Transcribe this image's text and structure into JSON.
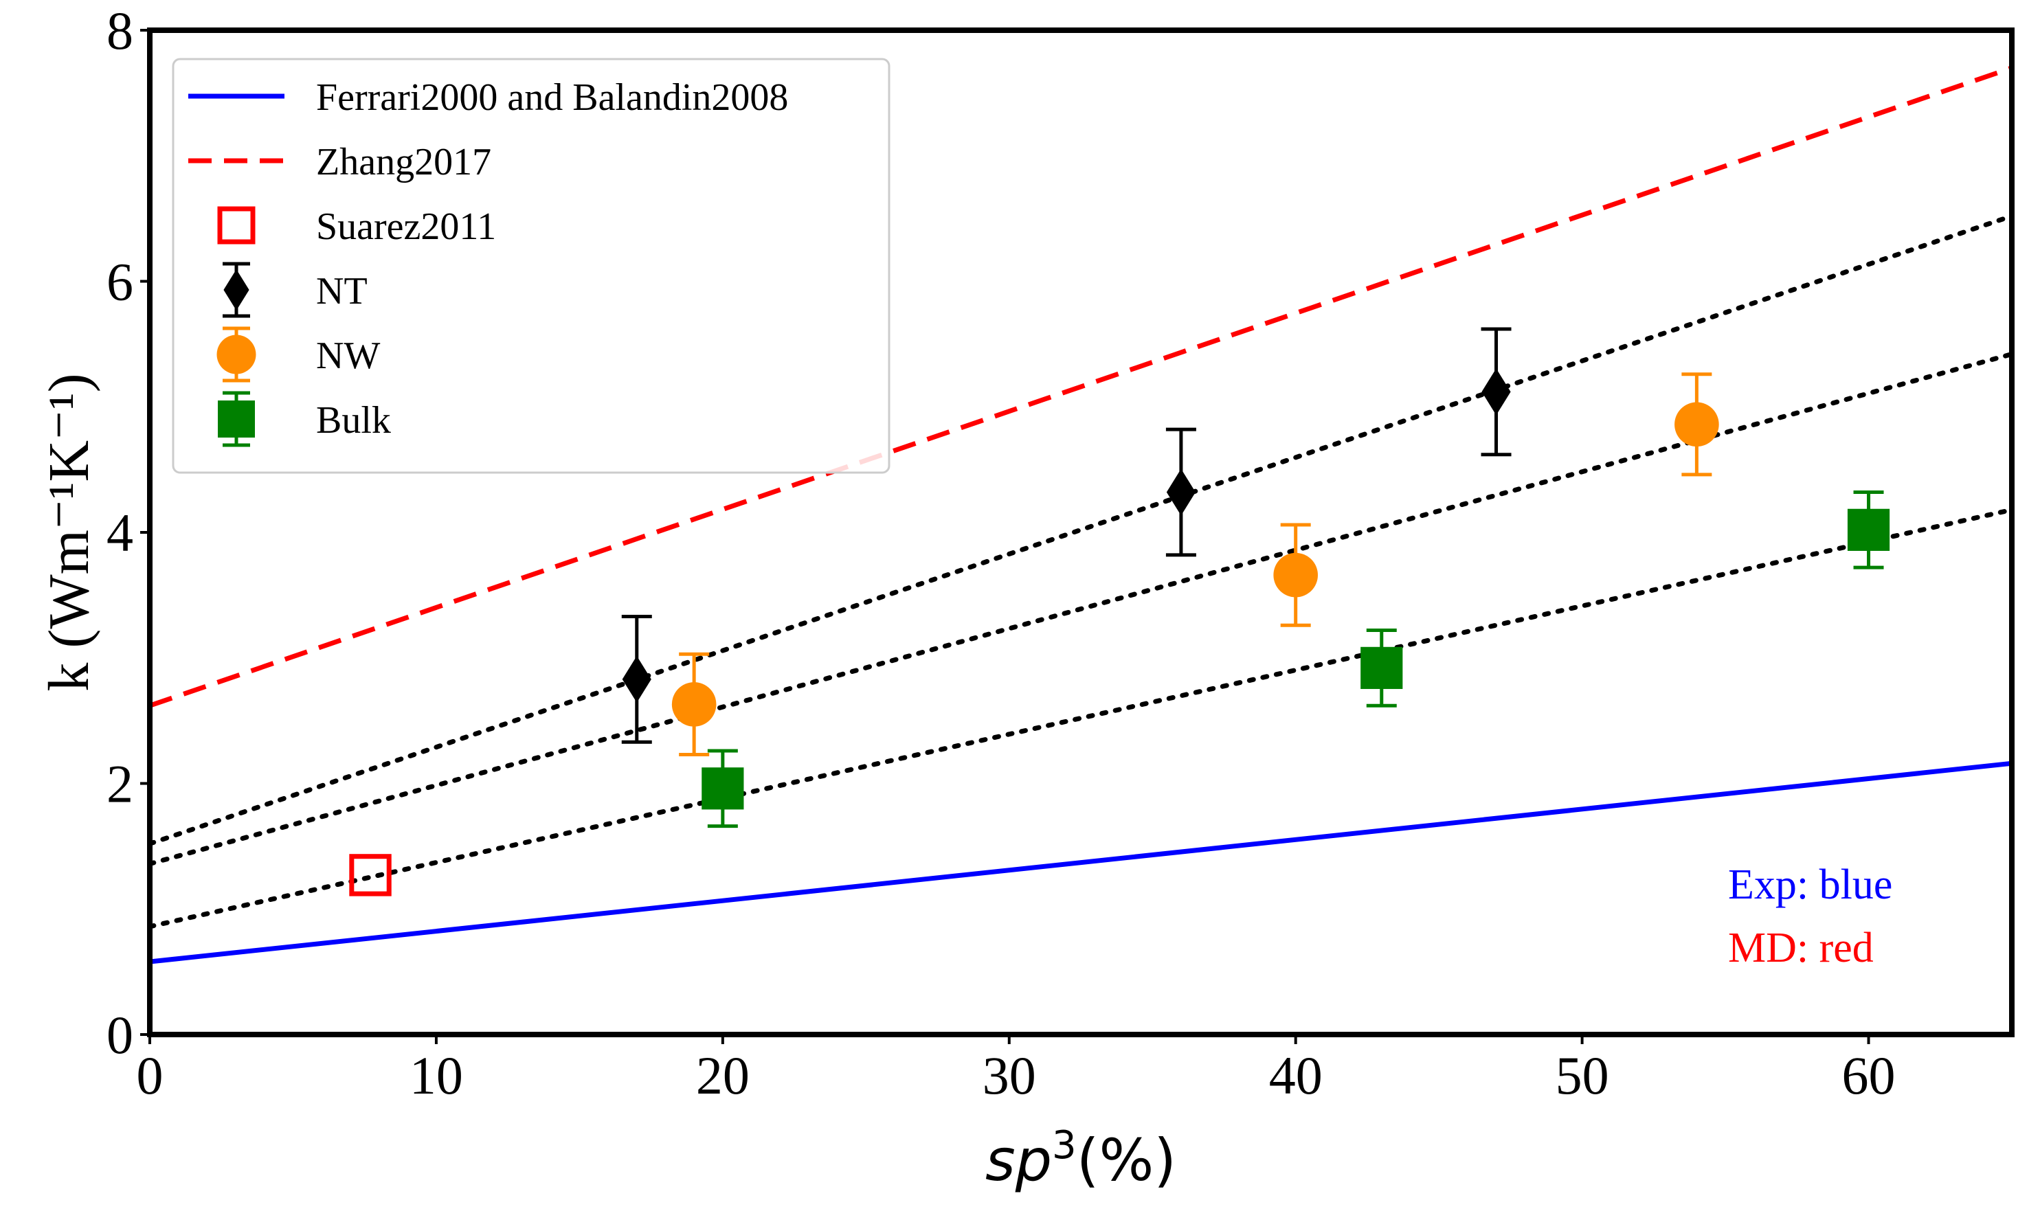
{
  "chart_data": {
    "type": "scatter",
    "title": "",
    "xlabel": {
      "base": "sp",
      "sup": "3",
      "rest": "(%)"
    },
    "ylabel": "k (Wm⁻¹K⁻¹)",
    "xlim": [
      0,
      65
    ],
    "ylim": [
      0,
      8
    ],
    "xticks": [
      0,
      10,
      20,
      30,
      40,
      50,
      60
    ],
    "yticks": [
      0,
      2,
      4,
      6,
      8
    ],
    "grid": false,
    "legend_position": "top-left",
    "lines": [
      {
        "name": "Ferrari2000 and Balandin2008",
        "style": "solid",
        "color": "#0000ff",
        "x": [
          0,
          65
        ],
        "y": [
          0.58,
          2.16
        ],
        "in_legend": true
      },
      {
        "name": "Zhang2017",
        "style": "dashed",
        "color": "#ff0000",
        "x": [
          0,
          65
        ],
        "y": [
          2.62,
          7.7
        ],
        "in_legend": true
      },
      {
        "name": "NT fit",
        "style": "dotted",
        "color": "#000000",
        "x": [
          0,
          65
        ],
        "y": [
          1.52,
          6.52
        ],
        "in_legend": false
      },
      {
        "name": "NW fit",
        "style": "dotted",
        "color": "#000000",
        "x": [
          0,
          65
        ],
        "y": [
          1.36,
          5.42
        ],
        "in_legend": false
      },
      {
        "name": "Bulk fit",
        "style": "dotted",
        "color": "#000000",
        "x": [
          0,
          65
        ],
        "y": [
          0.86,
          4.18
        ],
        "in_legend": false
      }
    ],
    "series": [
      {
        "name": "Suarez2011",
        "marker": "open-square",
        "color": "#ff0000",
        "x": [
          7.7
        ],
        "y": [
          1.27
        ],
        "err": [
          0
        ]
      },
      {
        "name": "NT",
        "marker": "diamond",
        "color": "#000000",
        "x": [
          17,
          36,
          47
        ],
        "y": [
          2.83,
          4.32,
          5.12
        ],
        "err": [
          0.5,
          0.5,
          0.5
        ]
      },
      {
        "name": "NW",
        "marker": "circle",
        "color": "#ff8c00",
        "x": [
          19,
          40,
          54
        ],
        "y": [
          2.63,
          3.66,
          4.86
        ],
        "err": [
          0.4,
          0.4,
          0.4
        ]
      },
      {
        "name": "Bulk",
        "marker": "filled-square",
        "color": "#008000",
        "x": [
          20,
          43,
          60
        ],
        "y": [
          1.96,
          2.92,
          4.02
        ],
        "err": [
          0.3,
          0.3,
          0.3
        ]
      }
    ],
    "annotations": [
      {
        "text": "Exp: blue",
        "color": "#0000ff"
      },
      {
        "text": "MD: red",
        "color": "#ff0000"
      }
    ]
  }
}
